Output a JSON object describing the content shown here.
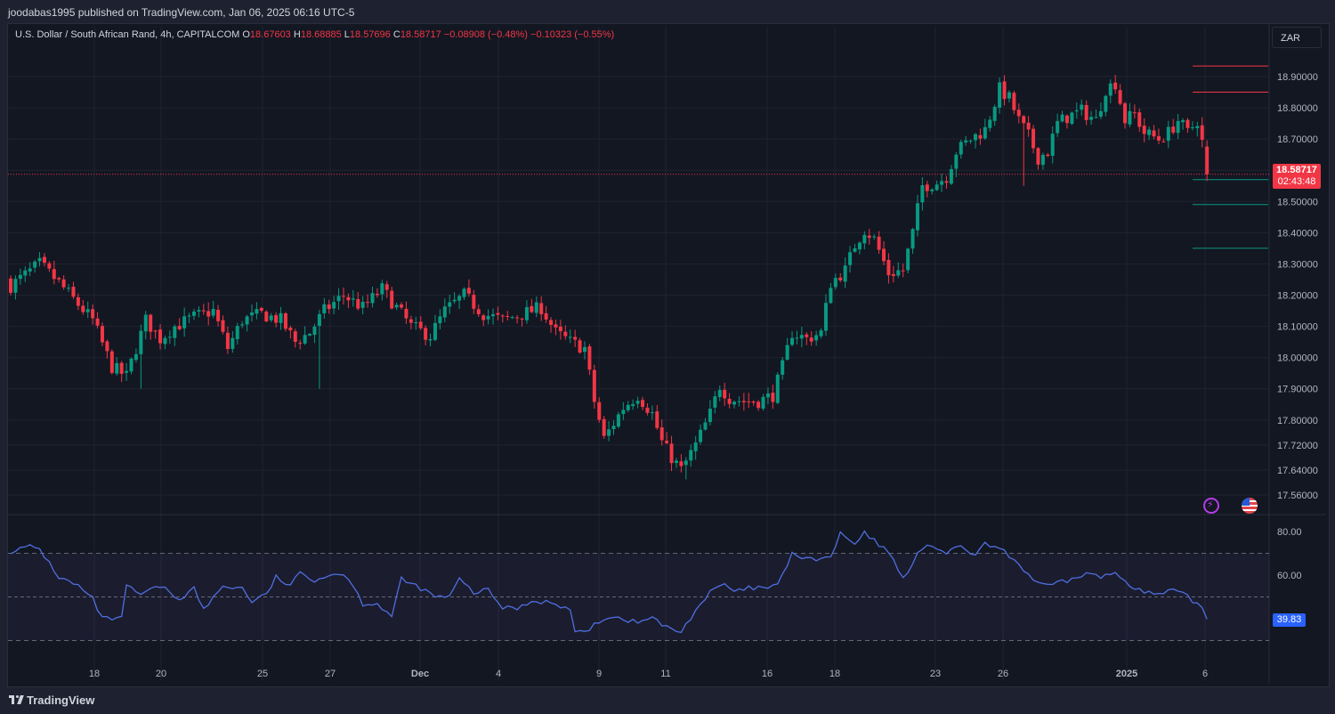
{
  "header": {
    "published": "joodabas1995 published on TradingView.com, Jan 06, 2025 06:16 UTC-5"
  },
  "legend": {
    "symbol": "U.S. Dollar / South African Rand, 4h, CAPITALCOM",
    "o_label": "O",
    "o": "18.67603",
    "h_label": "H",
    "h": "18.68885",
    "l_label": "L",
    "l": "18.57696",
    "c_label": "C",
    "c": "18.58717",
    "change": "−0.08908 (−0.48%)",
    "change2": "−0.10323 (−0.55%)"
  },
  "currency_button": "ZAR",
  "price_tag": {
    "price": "18.58717",
    "countdown": "02:43:48"
  },
  "rsi_tag": "39.83",
  "footer": {
    "brand": "TradingView"
  },
  "colors": {
    "up": "#089981",
    "down": "#f23645",
    "rsi": "#4f6fe0",
    "background": "#131722"
  },
  "icons": [
    "lightning-icon",
    "us-flag-icon",
    "tradingview-logo-icon"
  ],
  "chart_data": [
    {
      "type": "candlestick",
      "title": "U.S. Dollar / South African Rand, 4h, CAPITALCOM",
      "y_ticks": [
        "18.90000",
        "18.80000",
        "18.70000",
        "18.60000",
        "18.50000",
        "18.40000",
        "18.30000",
        "18.20000",
        "18.10000",
        "18.00000",
        "17.90000",
        "17.80000",
        "17.72000",
        "17.64000",
        "17.56000"
      ],
      "x_ticks": [
        "18",
        "20",
        "25",
        "27",
        "Dec",
        "4",
        "9",
        "11",
        "16",
        "18",
        "23",
        "26",
        "2025",
        "6"
      ],
      "ylim": [
        17.52,
        18.97
      ],
      "last_price": 18.58717,
      "levels": [
        {
          "value": 18.934,
          "color": "red"
        },
        {
          "value": 18.85,
          "color": "red"
        },
        {
          "value": 18.57,
          "color": "green"
        },
        {
          "value": 18.49,
          "color": "green"
        },
        {
          "value": 18.35,
          "color": "green"
        }
      ],
      "waypoints": [
        [
          0,
          18.23
        ],
        [
          6,
          18.3
        ],
        [
          10,
          18.24
        ],
        [
          14,
          18.17
        ],
        [
          17,
          18.12
        ],
        [
          21,
          17.97
        ],
        [
          24,
          17.94
        ],
        [
          28,
          18.12
        ],
        [
          31,
          18.06
        ],
        [
          34,
          18.1
        ],
        [
          38,
          18.13
        ],
        [
          42,
          18.15
        ],
        [
          45,
          18.03
        ],
        [
          48,
          18.12
        ],
        [
          52,
          18.14
        ],
        [
          56,
          18.12
        ],
        [
          59,
          18.05
        ],
        [
          62,
          18.08
        ],
        [
          65,
          18.15
        ],
        [
          69,
          18.2
        ],
        [
          73,
          18.16
        ],
        [
          77,
          18.22
        ],
        [
          80,
          18.16
        ],
        [
          83,
          18.1
        ],
        [
          87,
          18.07
        ],
        [
          90,
          18.15
        ],
        [
          94,
          18.2
        ],
        [
          98,
          18.14
        ],
        [
          102,
          18.12
        ],
        [
          106,
          18.14
        ],
        [
          110,
          18.16
        ],
        [
          113,
          18.08
        ],
        [
          116,
          18.05
        ],
        [
          119,
          18.03
        ],
        [
          121,
          17.86
        ],
        [
          123,
          17.74
        ],
        [
          127,
          17.84
        ],
        [
          130,
          17.88
        ],
        [
          133,
          17.82
        ],
        [
          135,
          17.73
        ],
        [
          137,
          17.68
        ],
        [
          139,
          17.64
        ],
        [
          142,
          17.72
        ],
        [
          145,
          17.82
        ],
        [
          147,
          17.91
        ],
        [
          149,
          17.87
        ],
        [
          152,
          17.86
        ],
        [
          155,
          17.86
        ],
        [
          158,
          17.88
        ],
        [
          160,
          17.97
        ],
        [
          162,
          18.08
        ],
        [
          165,
          18.06
        ],
        [
          168,
          18.08
        ],
        [
          170,
          18.24
        ],
        [
          173,
          18.28
        ],
        [
          175,
          18.36
        ],
        [
          177,
          18.41
        ],
        [
          179,
          18.38
        ],
        [
          182,
          18.27
        ],
        [
          185,
          18.28
        ],
        [
          187,
          18.4
        ],
        [
          189,
          18.55
        ],
        [
          192,
          18.56
        ],
        [
          194,
          18.58
        ],
        [
          196,
          18.66
        ],
        [
          199,
          18.7
        ],
        [
          202,
          18.73
        ],
        [
          205,
          18.86
        ],
        [
          207,
          18.83
        ],
        [
          209,
          18.76
        ],
        [
          211,
          18.71
        ],
        [
          213,
          18.64
        ],
        [
          215,
          18.66
        ],
        [
          217,
          18.75
        ],
        [
          219,
          18.77
        ],
        [
          222,
          18.79
        ],
        [
          225,
          18.76
        ],
        [
          227,
          18.86
        ],
        [
          229,
          18.88
        ],
        [
          231,
          18.76
        ],
        [
          233,
          18.78
        ],
        [
          235,
          18.72
        ],
        [
          238,
          18.7
        ],
        [
          240,
          18.72
        ],
        [
          242,
          18.76
        ],
        [
          244,
          18.72
        ],
        [
          246,
          18.76
        ],
        [
          247,
          18.69
        ],
        [
          248,
          18.59
        ]
      ],
      "wick_lows": [
        {
          "i": 27,
          "low": 17.9
        },
        {
          "i": 64,
          "low": 17.9
        },
        {
          "i": 140,
          "low": 17.61
        },
        {
          "i": 210,
          "low": 18.55
        }
      ]
    },
    {
      "type": "line",
      "title": "RSI",
      "y_ticks": [
        "80.00",
        "60.00"
      ],
      "levels": [
        70,
        50,
        30
      ],
      "ylim": [
        28,
        82
      ],
      "values_at": [
        [
          0,
          71
        ],
        [
          4,
          73
        ],
        [
          6,
          72
        ],
        [
          10,
          59
        ],
        [
          14,
          55
        ],
        [
          17,
          49
        ],
        [
          19,
          40
        ],
        [
          23,
          40
        ],
        [
          24,
          55
        ],
        [
          27,
          51
        ],
        [
          31,
          55
        ],
        [
          35,
          49
        ],
        [
          38,
          54
        ],
        [
          40,
          44
        ],
        [
          44,
          55
        ],
        [
          48,
          54
        ],
        [
          50,
          48
        ],
        [
          53,
          51
        ],
        [
          55,
          59
        ],
        [
          58,
          55
        ],
        [
          60,
          61
        ],
        [
          63,
          58
        ],
        [
          66,
          60
        ],
        [
          69,
          61
        ],
        [
          71,
          55
        ],
        [
          73,
          47
        ],
        [
          76,
          47
        ],
        [
          79,
          41
        ],
        [
          81,
          58
        ],
        [
          85,
          54
        ],
        [
          88,
          50
        ],
        [
          91,
          50
        ],
        [
          93,
          58
        ],
        [
          96,
          52
        ],
        [
          99,
          53
        ],
        [
          102,
          45
        ],
        [
          105,
          45
        ],
        [
          108,
          48
        ],
        [
          111,
          48
        ],
        [
          113,
          46
        ],
        [
          116,
          44
        ],
        [
          117,
          35
        ],
        [
          119,
          33
        ],
        [
          121,
          38
        ],
        [
          124,
          41
        ],
        [
          127,
          40
        ],
        [
          130,
          38
        ],
        [
          133,
          41
        ],
        [
          135,
          37
        ],
        [
          137,
          35
        ],
        [
          139,
          34
        ],
        [
          142,
          44
        ],
        [
          145,
          52
        ],
        [
          148,
          56
        ],
        [
          150,
          52
        ],
        [
          153,
          54
        ],
        [
          156,
          54
        ],
        [
          159,
          55
        ],
        [
          162,
          70
        ],
        [
          165,
          67
        ],
        [
          170,
          68
        ],
        [
          172,
          79
        ],
        [
          175,
          74
        ],
        [
          177,
          79
        ],
        [
          180,
          74
        ],
        [
          183,
          68
        ],
        [
          185,
          58
        ],
        [
          188,
          70
        ],
        [
          191,
          74
        ],
        [
          194,
          70
        ],
        [
          197,
          73
        ],
        [
          200,
          69
        ],
        [
          202,
          74
        ],
        [
          204,
          73
        ],
        [
          207,
          69
        ],
        [
          209,
          65
        ],
        [
          211,
          60
        ],
        [
          214,
          55
        ],
        [
          217,
          56
        ],
        [
          220,
          58
        ],
        [
          223,
          61
        ],
        [
          226,
          59
        ],
        [
          229,
          61
        ],
        [
          232,
          56
        ],
        [
          235,
          52
        ],
        [
          238,
          51
        ],
        [
          241,
          53
        ],
        [
          244,
          50
        ],
        [
          247,
          45
        ],
        [
          248,
          39.83
        ]
      ]
    }
  ]
}
